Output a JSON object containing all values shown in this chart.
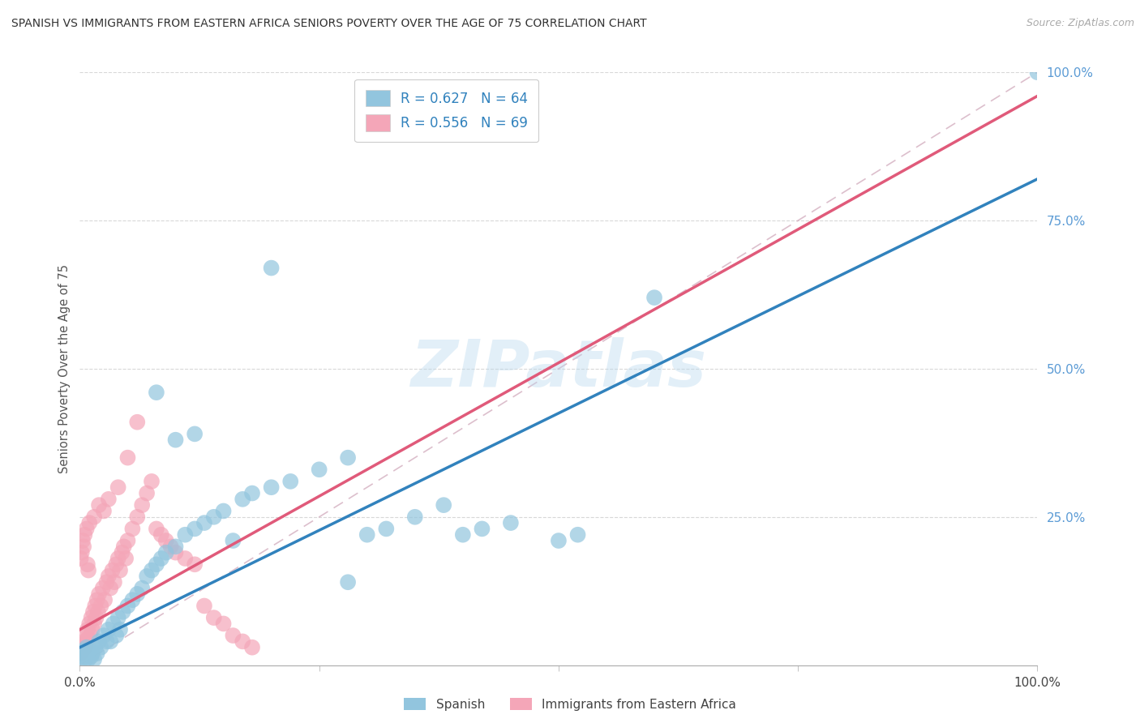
{
  "title": "SPANISH VS IMMIGRANTS FROM EASTERN AFRICA SENIORS POVERTY OVER THE AGE OF 75 CORRELATION CHART",
  "source": "Source: ZipAtlas.com",
  "ylabel": "Seniors Poverty Over the Age of 75",
  "xlim": [
    0,
    1
  ],
  "ylim": [
    0,
    1
  ],
  "ytick_values": [
    0.25,
    0.5,
    0.75,
    1.0
  ],
  "ytick_labels": [
    "25.0%",
    "50.0%",
    "75.0%",
    "100.0%"
  ],
  "xtick_values": [
    0.0,
    0.25,
    0.5,
    0.75,
    1.0
  ],
  "watermark": "ZIPatlas",
  "legend_R1": "R = 0.627",
  "legend_N1": "N = 64",
  "legend_R2": "R = 0.556",
  "legend_N2": "N = 69",
  "blue_color": "#92c5de",
  "pink_color": "#f4a6b8",
  "blue_line_color": "#3182bd",
  "pink_line_color": "#e05a7a",
  "dashed_line_color": "#d4afc0",
  "grid_color": "#d8d8d8",
  "blue_trendline_x": [
    0.0,
    1.0
  ],
  "blue_trendline_y": [
    0.03,
    0.82
  ],
  "pink_trendline_x": [
    0.0,
    1.0
  ],
  "pink_trendline_y": [
    0.06,
    0.96
  ],
  "diag_line": true,
  "legend_labels": [
    "Spanish",
    "Immigrants from Eastern Africa"
  ],
  "blue_scatter": [
    [
      0.001,
      0.02
    ],
    [
      0.002,
      0.01
    ],
    [
      0.003,
      0.015
    ],
    [
      0.004,
      0.02
    ],
    [
      0.005,
      0.025
    ],
    [
      0.006,
      0.01
    ],
    [
      0.007,
      0.03
    ],
    [
      0.008,
      0.02
    ],
    [
      0.009,
      0.01
    ],
    [
      0.01,
      0.025
    ],
    [
      0.012,
      0.015
    ],
    [
      0.013,
      0.02
    ],
    [
      0.015,
      0.01
    ],
    [
      0.016,
      0.03
    ],
    [
      0.018,
      0.02
    ],
    [
      0.02,
      0.04
    ],
    [
      0.022,
      0.03
    ],
    [
      0.025,
      0.05
    ],
    [
      0.028,
      0.04
    ],
    [
      0.03,
      0.06
    ],
    [
      0.032,
      0.04
    ],
    [
      0.035,
      0.07
    ],
    [
      0.038,
      0.05
    ],
    [
      0.04,
      0.08
    ],
    [
      0.042,
      0.06
    ],
    [
      0.045,
      0.09
    ],
    [
      0.05,
      0.1
    ],
    [
      0.055,
      0.11
    ],
    [
      0.06,
      0.12
    ],
    [
      0.065,
      0.13
    ],
    [
      0.07,
      0.15
    ],
    [
      0.075,
      0.16
    ],
    [
      0.08,
      0.17
    ],
    [
      0.085,
      0.18
    ],
    [
      0.09,
      0.19
    ],
    [
      0.1,
      0.2
    ],
    [
      0.11,
      0.22
    ],
    [
      0.12,
      0.23
    ],
    [
      0.13,
      0.24
    ],
    [
      0.14,
      0.25
    ],
    [
      0.15,
      0.26
    ],
    [
      0.16,
      0.21
    ],
    [
      0.17,
      0.28
    ],
    [
      0.18,
      0.29
    ],
    [
      0.2,
      0.3
    ],
    [
      0.22,
      0.31
    ],
    [
      0.25,
      0.33
    ],
    [
      0.28,
      0.35
    ],
    [
      0.3,
      0.22
    ],
    [
      0.32,
      0.23
    ],
    [
      0.35,
      0.25
    ],
    [
      0.38,
      0.27
    ],
    [
      0.4,
      0.22
    ],
    [
      0.42,
      0.23
    ],
    [
      0.45,
      0.24
    ],
    [
      0.5,
      0.21
    ],
    [
      0.52,
      0.22
    ],
    [
      0.08,
      0.46
    ],
    [
      0.2,
      0.67
    ],
    [
      0.6,
      0.62
    ],
    [
      1.0,
      1.0
    ],
    [
      0.28,
      0.14
    ],
    [
      0.1,
      0.38
    ],
    [
      0.12,
      0.39
    ]
  ],
  "pink_scatter": [
    [
      0.001,
      0.02
    ],
    [
      0.002,
      0.03
    ],
    [
      0.003,
      0.025
    ],
    [
      0.004,
      0.04
    ],
    [
      0.005,
      0.05
    ],
    [
      0.006,
      0.03
    ],
    [
      0.007,
      0.04
    ],
    [
      0.008,
      0.06
    ],
    [
      0.009,
      0.045
    ],
    [
      0.01,
      0.07
    ],
    [
      0.011,
      0.05
    ],
    [
      0.012,
      0.08
    ],
    [
      0.013,
      0.06
    ],
    [
      0.014,
      0.09
    ],
    [
      0.015,
      0.07
    ],
    [
      0.016,
      0.1
    ],
    [
      0.017,
      0.08
    ],
    [
      0.018,
      0.11
    ],
    [
      0.019,
      0.09
    ],
    [
      0.02,
      0.12
    ],
    [
      0.022,
      0.1
    ],
    [
      0.024,
      0.13
    ],
    [
      0.026,
      0.11
    ],
    [
      0.028,
      0.14
    ],
    [
      0.03,
      0.15
    ],
    [
      0.032,
      0.13
    ],
    [
      0.034,
      0.16
    ],
    [
      0.036,
      0.14
    ],
    [
      0.038,
      0.17
    ],
    [
      0.04,
      0.18
    ],
    [
      0.042,
      0.16
    ],
    [
      0.044,
      0.19
    ],
    [
      0.046,
      0.2
    ],
    [
      0.048,
      0.18
    ],
    [
      0.05,
      0.21
    ],
    [
      0.055,
      0.23
    ],
    [
      0.06,
      0.25
    ],
    [
      0.065,
      0.27
    ],
    [
      0.07,
      0.29
    ],
    [
      0.075,
      0.31
    ],
    [
      0.08,
      0.23
    ],
    [
      0.085,
      0.22
    ],
    [
      0.09,
      0.21
    ],
    [
      0.095,
      0.2
    ],
    [
      0.1,
      0.19
    ],
    [
      0.11,
      0.18
    ],
    [
      0.12,
      0.17
    ],
    [
      0.13,
      0.1
    ],
    [
      0.14,
      0.08
    ],
    [
      0.15,
      0.07
    ],
    [
      0.16,
      0.05
    ],
    [
      0.17,
      0.04
    ],
    [
      0.18,
      0.03
    ],
    [
      0.05,
      0.35
    ],
    [
      0.06,
      0.41
    ],
    [
      0.03,
      0.28
    ],
    [
      0.04,
      0.3
    ],
    [
      0.02,
      0.27
    ],
    [
      0.025,
      0.26
    ],
    [
      0.01,
      0.24
    ],
    [
      0.015,
      0.25
    ],
    [
      0.005,
      0.22
    ],
    [
      0.007,
      0.23
    ],
    [
      0.003,
      0.21
    ],
    [
      0.004,
      0.2
    ],
    [
      0.002,
      0.19
    ],
    [
      0.001,
      0.18
    ],
    [
      0.008,
      0.17
    ],
    [
      0.009,
      0.16
    ]
  ]
}
